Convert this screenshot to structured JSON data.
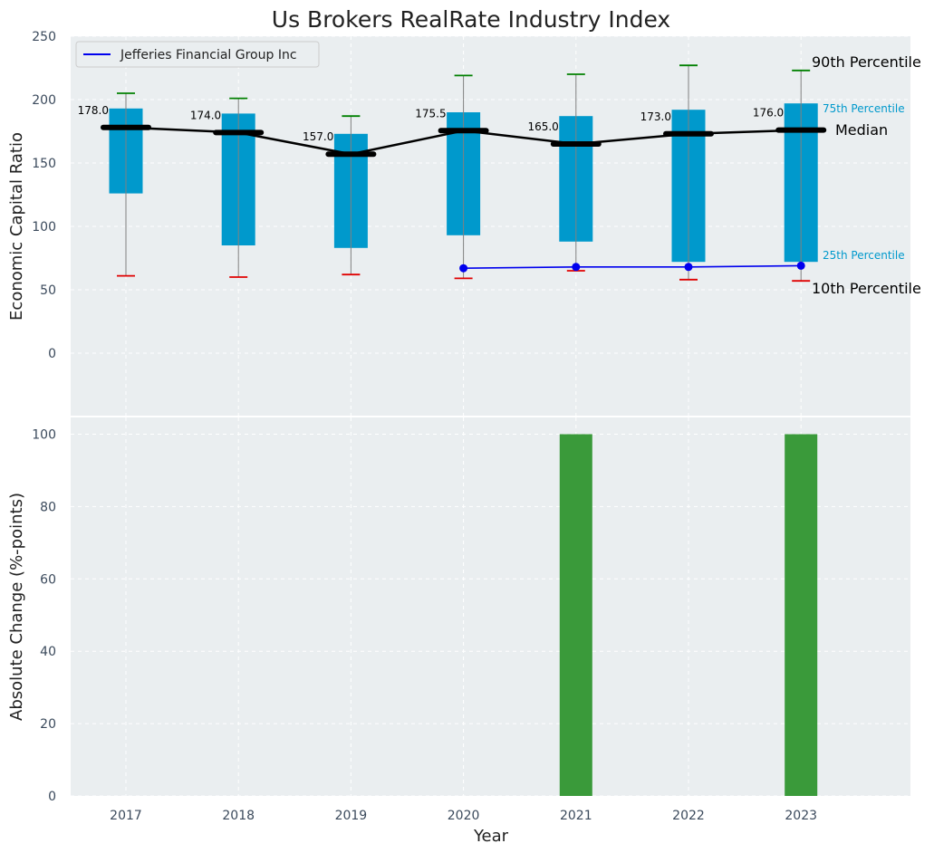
{
  "chart_data": [
    {
      "type": "box-range",
      "title": "Us Brokers RealRate Industry Index",
      "ylabel": "Economic Capital Ratio",
      "ylim": [
        -50,
        250
      ],
      "yticks": [
        0,
        50,
        100,
        150,
        200,
        250
      ],
      "grid": true,
      "categories": [
        "2017",
        "2018",
        "2019",
        "2020",
        "2021",
        "2022",
        "2023"
      ],
      "p10": [
        61,
        60,
        62,
        59,
        65,
        58,
        57
      ],
      "p25": [
        126,
        85,
        83,
        93,
        88,
        72,
        72
      ],
      "median": [
        178.0,
        174.0,
        157.0,
        175.5,
        165.0,
        173.0,
        176.0
      ],
      "median_labels": [
        "178.0",
        "174.0",
        "157.0",
        "175.5",
        "165.0",
        "173.0",
        "176.0"
      ],
      "p75": [
        193,
        189,
        173,
        190,
        187,
        192,
        197
      ],
      "p90": [
        205,
        201,
        187,
        219,
        220,
        227,
        223
      ],
      "company_series": {
        "name": "Jefferies Financial Group Inc",
        "x": [
          "2020",
          "2021",
          "2022",
          "2023"
        ],
        "values": [
          67,
          68,
          68,
          69
        ]
      },
      "annotations": {
        "p90": "90th Percentile",
        "p75": "75th Percentile",
        "median": "Median",
        "p25": "25th Percentile",
        "p10": "10th Percentile"
      },
      "legend": {
        "position": "top-left",
        "entries": [
          "Jefferies Financial Group Inc"
        ]
      },
      "colors": {
        "box": "#0099cc",
        "median": "#000000",
        "p90_cap": "#008000",
        "p10_cap": "#e00000",
        "company": "#0000ee",
        "whisker": "#808080"
      }
    },
    {
      "type": "bar",
      "xlabel": "Year",
      "ylabel": "Absolute Change (%-points)",
      "ylim": [
        0,
        105
      ],
      "yticks": [
        0,
        20,
        40,
        60,
        80,
        100
      ],
      "grid": true,
      "categories": [
        "2017",
        "2018",
        "2019",
        "2020",
        "2021",
        "2022",
        "2023"
      ],
      "values": [
        0,
        0,
        0,
        0,
        100,
        0,
        100
      ],
      "colors": {
        "bar": "#3a9a3a"
      }
    }
  ]
}
